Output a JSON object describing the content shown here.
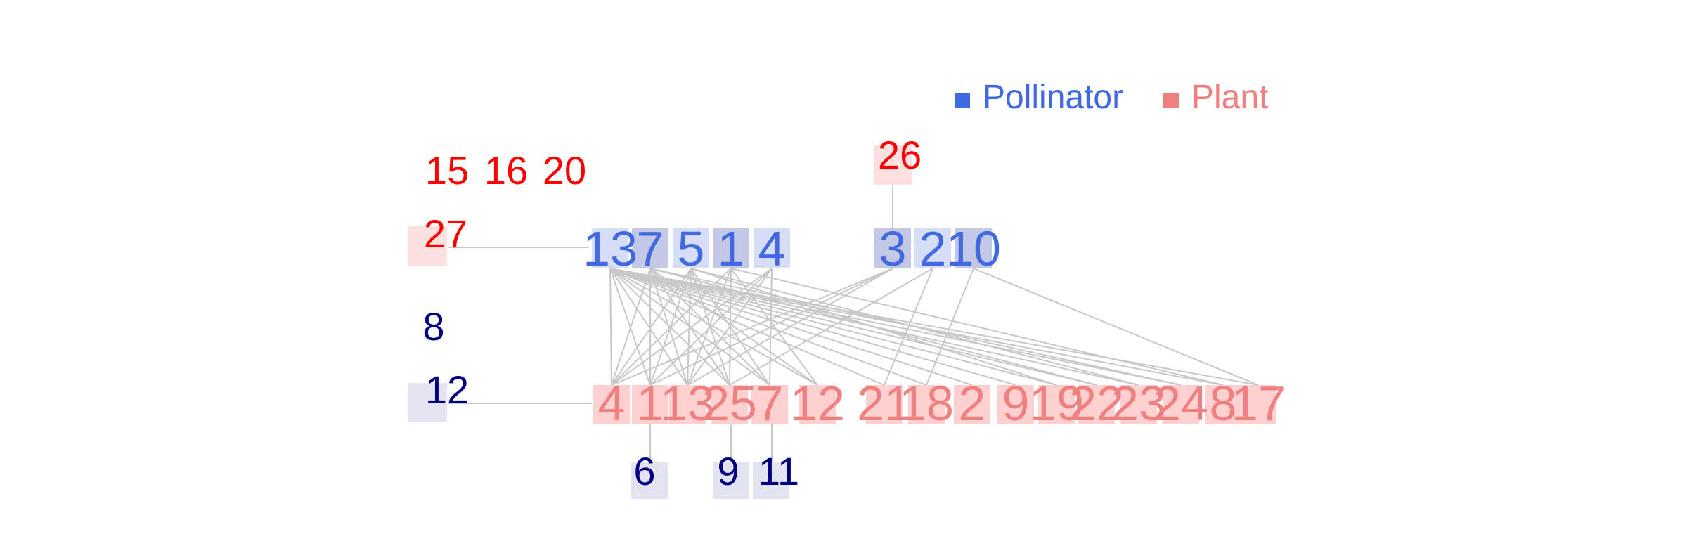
{
  "colors": {
    "pollinator_text": "#4169e1",
    "plant_text": "#f08080",
    "isolated_plant_text": "#ff0000",
    "isolated_pollinator_text": "#000080",
    "edge": "#c8c8c8"
  },
  "legend": [
    {
      "label": "Pollinator",
      "color": "#4169e1"
    },
    {
      "label": "Plant",
      "color": "#f08080"
    }
  ],
  "pollinators": [
    "13",
    "7",
    "5",
    "1",
    "4",
    "3",
    "2",
    "10"
  ],
  "plants": [
    "4",
    "1",
    "13",
    "25",
    "7",
    "12",
    "21",
    "18",
    "2",
    "9",
    "19",
    "22",
    "23",
    "24",
    "8",
    "17"
  ],
  "isolated_plants": [
    "15",
    "16",
    "20"
  ],
  "pendant_plant_above": {
    "label": "26",
    "attached_to": "3"
  },
  "pendant_plant_left": {
    "label": "27",
    "attached_to": "13"
  },
  "pendant_pollinators_left": [
    {
      "label": "8"
    },
    {
      "label": "12",
      "attached_to": "4"
    }
  ],
  "pendant_pollinators_below": [
    {
      "label": "6",
      "attached_to": "1"
    },
    {
      "label": "9",
      "attached_to": "25"
    },
    {
      "label": "11",
      "attached_to": "7"
    }
  ],
  "edges": [
    [
      "13",
      "4"
    ],
    [
      "13",
      "1"
    ],
    [
      "13",
      "13"
    ],
    [
      "13",
      "25"
    ],
    [
      "13",
      "7"
    ],
    [
      "13",
      "12"
    ],
    [
      "13",
      "21"
    ],
    [
      "13",
      "18"
    ],
    [
      "13",
      "2"
    ],
    [
      "13",
      "9"
    ],
    [
      "13",
      "19"
    ],
    [
      "13",
      "22"
    ],
    [
      "13",
      "23"
    ],
    [
      "13",
      "24"
    ],
    [
      "13",
      "8"
    ],
    [
      "13",
      "17"
    ],
    [
      "7",
      "4"
    ],
    [
      "7",
      "1"
    ],
    [
      "7",
      "13"
    ],
    [
      "7",
      "25"
    ],
    [
      "7",
      "7"
    ],
    [
      "7",
      "12"
    ],
    [
      "7",
      "22"
    ],
    [
      "7",
      "24"
    ],
    [
      "5",
      "4"
    ],
    [
      "5",
      "1"
    ],
    [
      "5",
      "13"
    ],
    [
      "5",
      "25"
    ],
    [
      "5",
      "7"
    ],
    [
      "5",
      "19"
    ],
    [
      "5",
      "23"
    ],
    [
      "1",
      "4"
    ],
    [
      "1",
      "13"
    ],
    [
      "1",
      "25"
    ],
    [
      "1",
      "12"
    ],
    [
      "1",
      "8"
    ],
    [
      "4",
      "4"
    ],
    [
      "4",
      "1"
    ],
    [
      "4",
      "13"
    ],
    [
      "4",
      "7"
    ],
    [
      "3",
      "1"
    ],
    [
      "3",
      "13"
    ],
    [
      "3",
      "4"
    ],
    [
      "2",
      "21"
    ],
    [
      "2",
      "25"
    ],
    [
      "10",
      "18"
    ],
    [
      "10",
      "17"
    ]
  ]
}
